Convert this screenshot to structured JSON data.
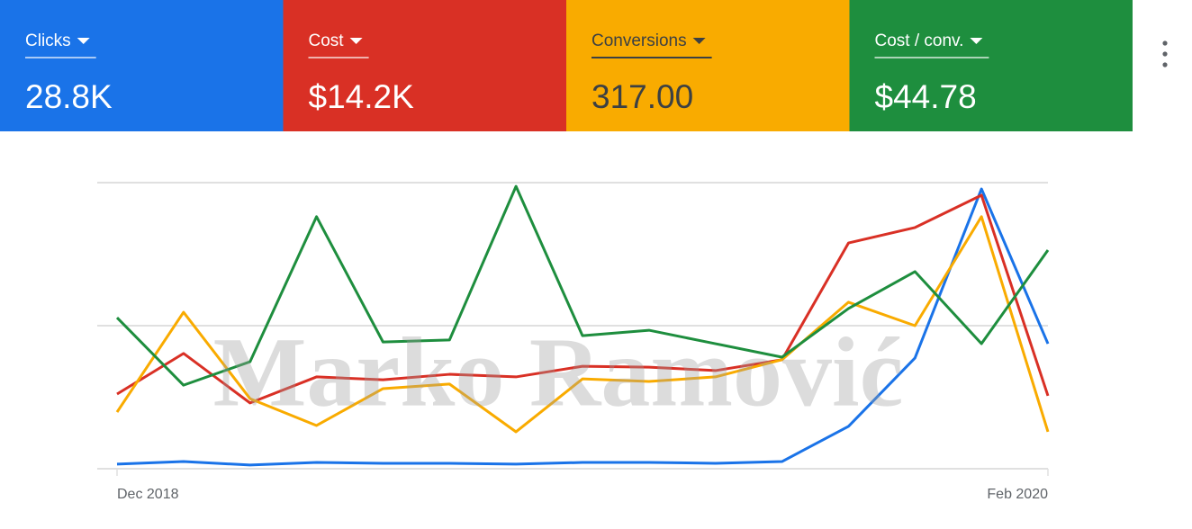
{
  "chart_data": {
    "type": "line",
    "categories": [
      "Dec 2018",
      null,
      null,
      null,
      null,
      null,
      null,
      null,
      null,
      null,
      null,
      null,
      null,
      null,
      "Feb 2020"
    ],
    "ylim": [
      0,
      100
    ],
    "yticks": [
      0,
      50,
      100
    ],
    "grid": true,
    "watermark": "Marko Ramović",
    "series": [
      {
        "name": "Clicks",
        "total": "28.8K",
        "color": "#1a73e8",
        "values": [
          1.6,
          2.5,
          1.3,
          2.2,
          1.9,
          1.9,
          1.6,
          2.2,
          2.2,
          1.9,
          2.5,
          14.8,
          38.7,
          97.8,
          43.7
        ]
      },
      {
        "name": "Cost",
        "total": "$14.2K",
        "color": "#d93025",
        "values": [
          26.1,
          40.3,
          23.0,
          32.1,
          31.1,
          33.0,
          32.1,
          35.8,
          35.5,
          34.3,
          38.1,
          78.9,
          84.3,
          95.6,
          25.5
        ]
      },
      {
        "name": "Conversions",
        "total": "317.00",
        "color": "#f9ab00",
        "values": [
          19.8,
          54.7,
          24.5,
          15.1,
          28.0,
          29.6,
          12.9,
          31.4,
          30.5,
          32.1,
          38.1,
          58.2,
          50.0,
          88.1,
          12.9
        ]
      },
      {
        "name": "Cost / conv.",
        "total": "$44.78",
        "color": "#1e8e3e",
        "values": [
          52.8,
          29.2,
          37.4,
          88.1,
          44.3,
          45.0,
          98.7,
          46.5,
          48.4,
          43.7,
          39.0,
          56.0,
          68.9,
          43.7,
          76.4
        ]
      }
    ]
  }
}
